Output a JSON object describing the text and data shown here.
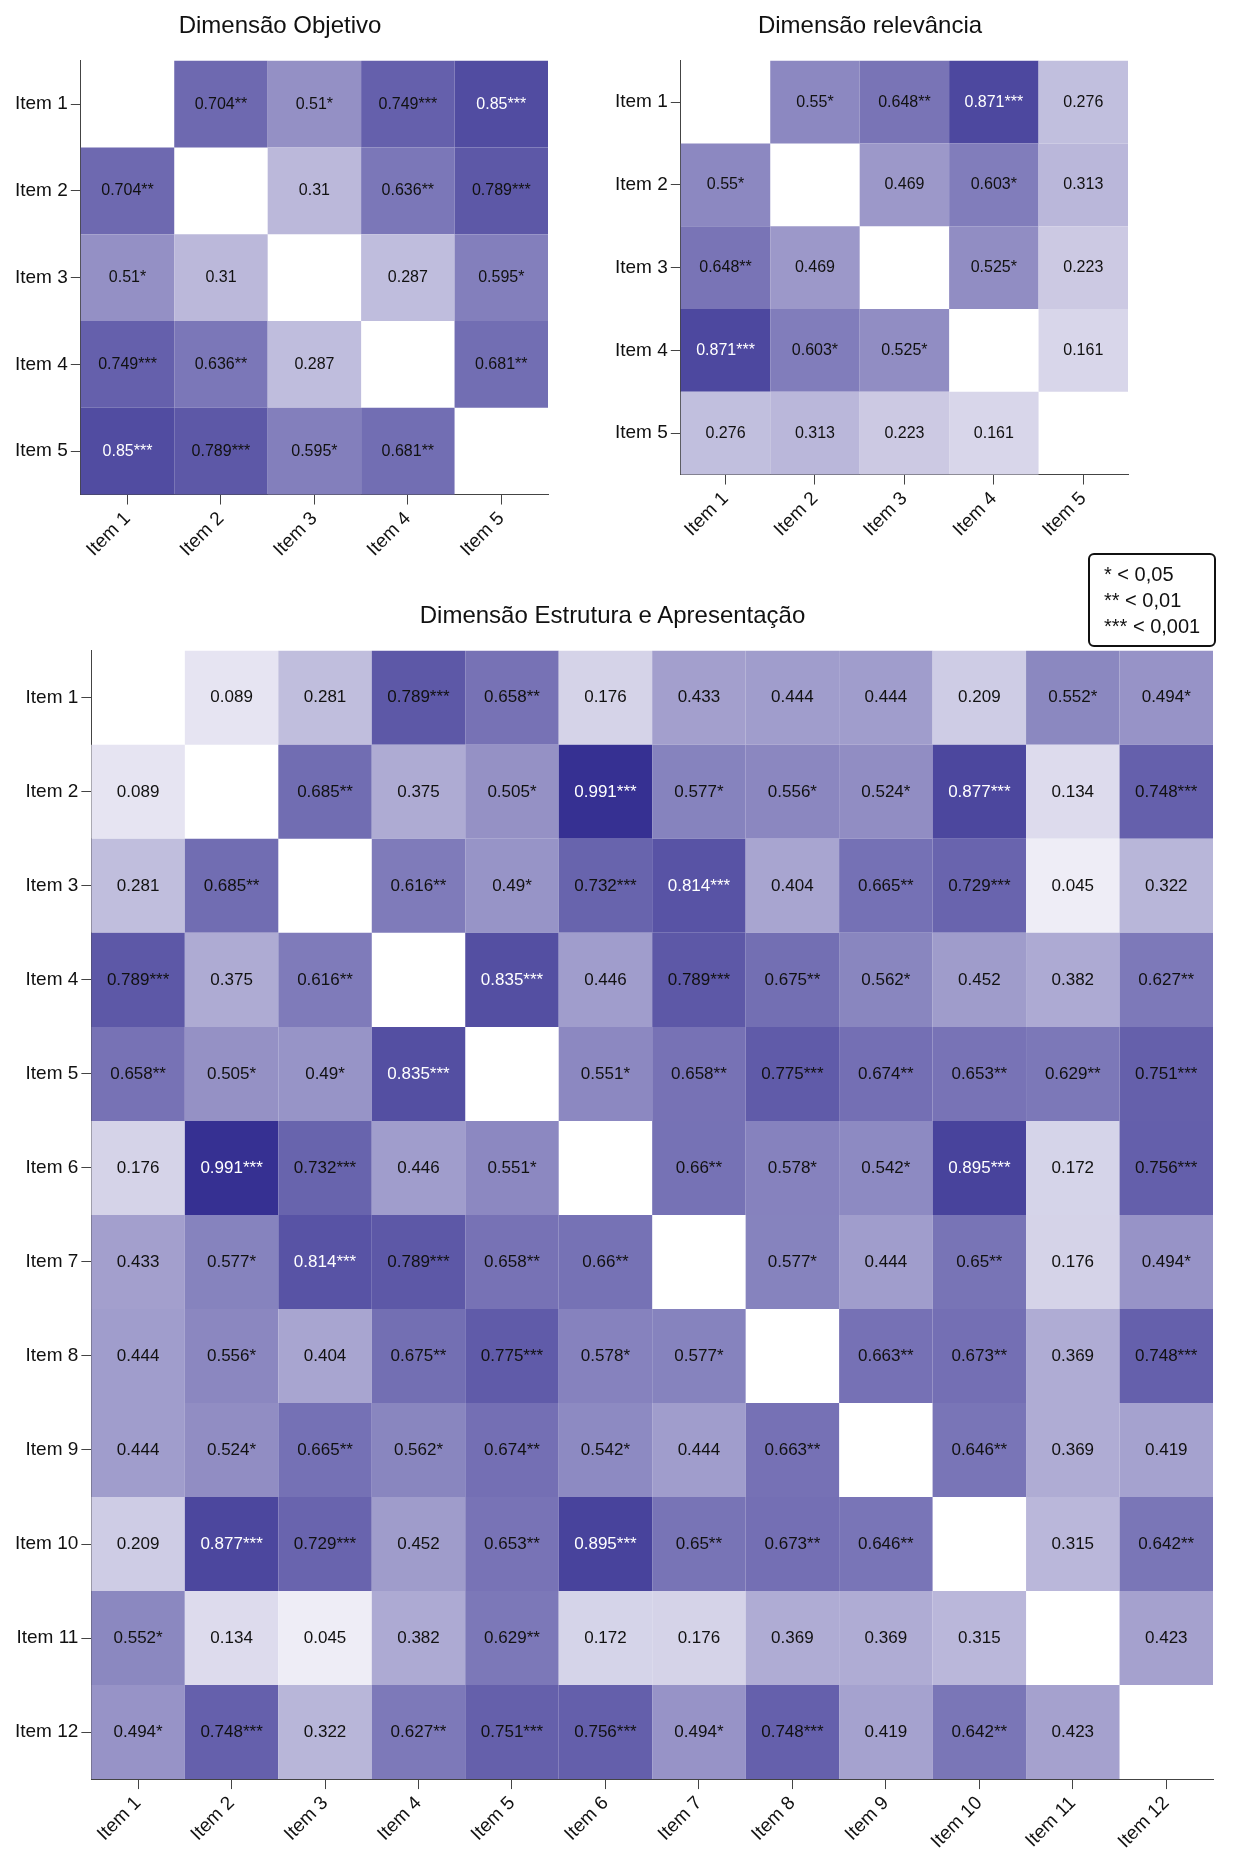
{
  "chart_data": [
    {
      "type": "heatmap",
      "title": "Dimensão Objetivo",
      "categories": [
        "Item 1",
        "Item 2",
        "Item 3",
        "Item 4",
        "Item 5"
      ],
      "y_categories": [
        "Item 1",
        "Item 2",
        "Item 3",
        "Item 4",
        "Item 5"
      ],
      "cells": [
        [
          null,
          0.704,
          0.51,
          0.749,
          0.85
        ],
        [
          0.704,
          null,
          0.31,
          0.636,
          0.789
        ],
        [
          0.51,
          0.31,
          null,
          0.287,
          0.595
        ],
        [
          0.749,
          0.636,
          0.287,
          null,
          0.681
        ],
        [
          0.85,
          0.789,
          0.595,
          0.681,
          null
        ]
      ],
      "cell_labels": [
        [
          null,
          "0.704**",
          "0.51*",
          "0.749***",
          "0.85***"
        ],
        [
          "0.704**",
          null,
          "0.31",
          "0.636**",
          "0.789***"
        ],
        [
          "0.51*",
          "0.31",
          null,
          "0.287",
          "0.595*"
        ],
        [
          "0.749***",
          "0.636**",
          "0.287",
          null,
          "0.681**"
        ],
        [
          "0.85***",
          "0.789***",
          "0.595*",
          "0.681**",
          null
        ]
      ]
    },
    {
      "type": "heatmap",
      "title": "Dimensão relevância",
      "categories": [
        "Item 1",
        "Item 2",
        "Item 3",
        "Item 4",
        "Item 5"
      ],
      "y_categories": [
        "Item 1",
        "Item 2",
        "Item 3",
        "Item 4",
        "Item 5"
      ],
      "cells": [
        [
          null,
          0.55,
          0.648,
          0.871,
          0.276
        ],
        [
          0.55,
          null,
          0.469,
          0.603,
          0.313
        ],
        [
          0.648,
          0.469,
          null,
          0.525,
          0.223
        ],
        [
          0.871,
          0.603,
          0.525,
          null,
          0.161
        ],
        [
          0.276,
          0.313,
          0.223,
          0.161,
          null
        ]
      ],
      "cell_labels": [
        [
          null,
          "0.55*",
          "0.648**",
          "0.871***",
          "0.276"
        ],
        [
          "0.55*",
          null,
          "0.469",
          "0.603*",
          "0.313"
        ],
        [
          "0.648**",
          "0.469",
          null,
          "0.525*",
          "0.223"
        ],
        [
          "0.871***",
          "0.603*",
          "0.525*",
          null,
          "0.161"
        ],
        [
          "0.276",
          "0.313",
          "0.223",
          "0.161",
          null
        ]
      ],
      "annotations": [
        "* < 0,05",
        "** < 0,01",
        "*** < 0,001"
      ]
    },
    {
      "type": "heatmap",
      "title": "Dimensão Estrutura e Apresentação",
      "categories": [
        "Item 1",
        "Item 2",
        "Item 3",
        "Item 4",
        "Item 5",
        "Item 6",
        "Item 7",
        "Item 8",
        "Item 9",
        "Item 10",
        "Item 11",
        "Item 12"
      ],
      "y_categories": [
        "Item 1",
        "Item 2",
        "Item 3",
        "Item 4",
        "Item 5",
        "Item 6",
        "Item 7",
        "Item 8",
        "Item 9",
        "Item 10",
        "Item 11",
        "Item 12"
      ],
      "cells": [
        [
          null,
          0.089,
          0.281,
          0.789,
          0.658,
          0.176,
          0.433,
          0.444,
          0.444,
          0.209,
          0.552,
          0.494
        ],
        [
          0.089,
          null,
          0.685,
          0.375,
          0.505,
          0.991,
          0.577,
          0.556,
          0.524,
          0.877,
          0.134,
          0.748
        ],
        [
          0.281,
          0.685,
          null,
          0.616,
          0.49,
          0.732,
          0.814,
          0.404,
          0.665,
          0.729,
          0.045,
          0.322
        ],
        [
          0.789,
          0.375,
          0.616,
          null,
          0.835,
          0.446,
          0.789,
          0.675,
          0.562,
          0.452,
          0.382,
          0.627
        ],
        [
          0.658,
          0.505,
          0.49,
          0.835,
          null,
          0.551,
          0.658,
          0.775,
          0.674,
          0.653,
          0.629,
          0.751
        ],
        [
          0.176,
          0.991,
          0.732,
          0.446,
          0.551,
          null,
          0.66,
          0.578,
          0.542,
          0.895,
          0.172,
          0.756
        ],
        [
          0.433,
          0.577,
          0.814,
          0.789,
          0.658,
          0.66,
          null,
          0.577,
          0.444,
          0.65,
          0.176,
          0.494
        ],
        [
          0.444,
          0.556,
          0.404,
          0.675,
          0.775,
          0.578,
          0.577,
          null,
          0.663,
          0.673,
          0.369,
          0.748
        ],
        [
          0.444,
          0.524,
          0.665,
          0.562,
          0.674,
          0.542,
          0.444,
          0.663,
          null,
          0.646,
          0.369,
          0.419
        ],
        [
          0.209,
          0.877,
          0.729,
          0.452,
          0.653,
          0.895,
          0.65,
          0.673,
          0.646,
          null,
          0.315,
          0.642
        ],
        [
          0.552,
          0.134,
          0.045,
          0.382,
          0.629,
          0.172,
          0.176,
          0.369,
          0.369,
          0.315,
          null,
          0.423
        ],
        [
          0.494,
          0.748,
          0.322,
          0.627,
          0.751,
          0.756,
          0.494,
          0.748,
          0.419,
          0.642,
          0.423,
          null
        ]
      ],
      "cell_labels": [
        [
          null,
          "0.089",
          "0.281",
          "0.789***",
          "0.658**",
          "0.176",
          "0.433",
          "0.444",
          "0.444",
          "0.209",
          "0.552*",
          "0.494*"
        ],
        [
          "0.089",
          null,
          "0.685**",
          "0.375",
          "0.505*",
          "0.991***",
          "0.577*",
          "0.556*",
          "0.524*",
          "0.877***",
          "0.134",
          "0.748***"
        ],
        [
          "0.281",
          "0.685**",
          null,
          "0.616**",
          "0.49*",
          "0.732***",
          "0.814***",
          "0.404",
          "0.665**",
          "0.729***",
          "0.045",
          "0.322"
        ],
        [
          "0.789***",
          "0.375",
          "0.616**",
          null,
          "0.835***",
          "0.446",
          "0.789***",
          "0.675**",
          "0.562*",
          "0.452",
          "0.382",
          "0.627**"
        ],
        [
          "0.658**",
          "0.505*",
          "0.49*",
          "0.835***",
          null,
          "0.551*",
          "0.658**",
          "0.775***",
          "0.674**",
          "0.653**",
          "0.629**",
          "0.751***"
        ],
        [
          "0.176",
          "0.991***",
          "0.732***",
          "0.446",
          "0.551*",
          null,
          "0.66**",
          "0.578*",
          "0.542*",
          "0.895***",
          "0.172",
          "0.756***"
        ],
        [
          "0.433",
          "0.577*",
          "0.814***",
          "0.789***",
          "0.658**",
          "0.66**",
          null,
          "0.577*",
          "0.444",
          "0.65**",
          "0.176",
          "0.494*"
        ],
        [
          "0.444",
          "0.556*",
          "0.404",
          "0.675**",
          "0.775***",
          "0.578*",
          "0.577*",
          null,
          "0.663**",
          "0.673**",
          "0.369",
          "0.748***"
        ],
        [
          "0.444",
          "0.524*",
          "0.665**",
          "0.562*",
          "0.674**",
          "0.542*",
          "0.444",
          "0.663**",
          null,
          "0.646**",
          "0.369",
          "0.419"
        ],
        [
          "0.209",
          "0.877***",
          "0.729***",
          "0.452",
          "0.653**",
          "0.895***",
          "0.65**",
          "0.673**",
          "0.646**",
          null,
          "0.315",
          "0.642**"
        ],
        [
          "0.552*",
          "0.134",
          "0.045",
          "0.382",
          "0.629**",
          "0.172",
          "0.176",
          "0.369",
          "0.369",
          "0.315",
          null,
          "0.423"
        ],
        [
          "0.494*",
          "0.748***",
          "0.322",
          "0.627**",
          "0.751***",
          "0.756***",
          "0.494*",
          "0.748***",
          "0.419",
          "0.642**",
          "0.423",
          null
        ]
      ]
    }
  ]
}
